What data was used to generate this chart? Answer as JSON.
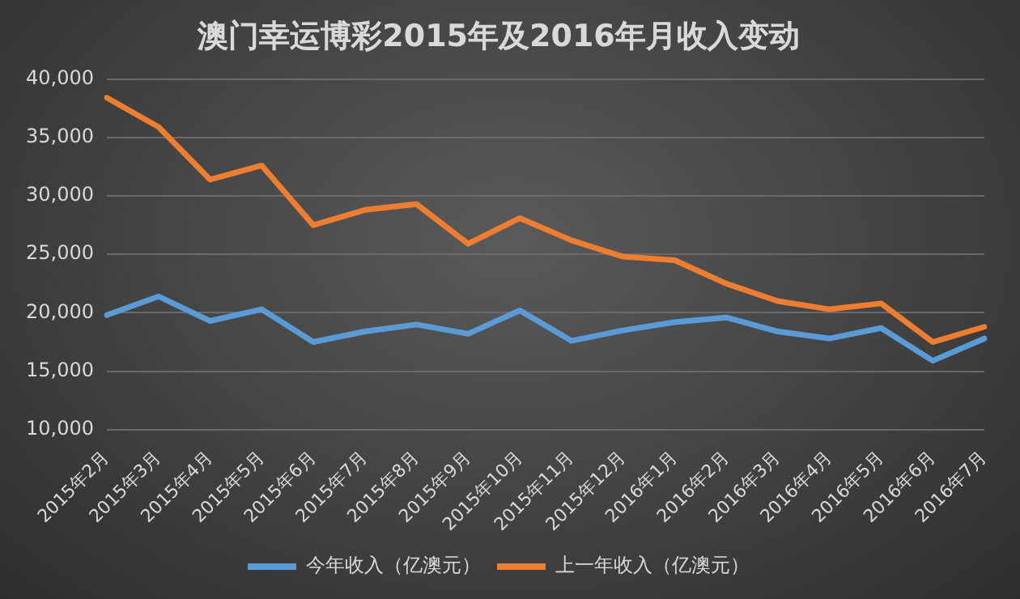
{
  "chart_data": {
    "type": "line",
    "title": "澳门幸运博彩2015年及2016年月收入变动",
    "categories": [
      "2015年2月",
      "2015年3月",
      "2015年4月",
      "2015年5月",
      "2015年6月",
      "2015年7月",
      "2015年8月",
      "2015年9月",
      "2015年10月",
      "2015年11月",
      "2015年12月",
      "2016年1月",
      "2016年2月",
      "2016年3月",
      "2016年4月",
      "2016年5月",
      "2016年6月",
      "2016年7月"
    ],
    "series": [
      {
        "name": "今年收入（亿澳元）",
        "color": "#5b9bd5",
        "values": [
          19800,
          21400,
          19300,
          20300,
          17500,
          18400,
          19000,
          18200,
          20200,
          17600,
          18500,
          19200,
          19600,
          18400,
          17800,
          18700,
          15900,
          17800
        ]
      },
      {
        "name": "上一年收入（亿澳元）",
        "color": "#ed7d31",
        "values": [
          38400,
          35900,
          31400,
          32600,
          27500,
          28800,
          29300,
          25900,
          28100,
          26200,
          24800,
          24500,
          22500,
          21000,
          20300,
          20800,
          17500,
          18800
        ]
      }
    ],
    "ylim": [
      10000,
      40000
    ],
    "yticks": [
      {
        "value": 10000,
        "label": "10,000"
      },
      {
        "value": 15000,
        "label": "15,000"
      },
      {
        "value": 20000,
        "label": "20,000"
      },
      {
        "value": 25000,
        "label": "25,000"
      },
      {
        "value": 30000,
        "label": "30,000"
      },
      {
        "value": 35000,
        "label": "35,000"
      },
      {
        "value": 40000,
        "label": "40,000"
      }
    ],
    "grid": "y",
    "legend": "bottom",
    "marker": "none",
    "line_style": "solid"
  }
}
